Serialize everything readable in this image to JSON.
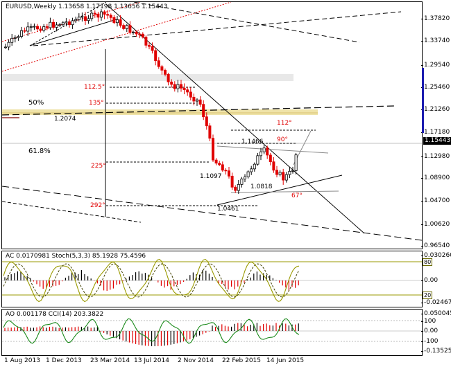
{
  "main": {
    "title": "EURUSD,Weekly  1.13658 1.17198 1.13656 1.15443",
    "current_price": "1.15443",
    "price_labels": [
      "1.37820",
      "1.33740",
      "1.29540",
      "1.25460",
      "1.21260",
      "1.17180",
      "1.12980",
      "1.08900",
      "1.04700",
      "1.00620",
      "0.96540"
    ],
    "annotations": {
      "fib50": "50%",
      "fib618": "61.8%",
      "level_1_2074": "1.2074",
      "level_1_1466": "1.1466",
      "level_1_1097": "1.1097",
      "level_1_0818": "1.0818",
      "level_1_0461": "1.0461",
      "angle_112_5": "112.5°",
      "angle_135": "135°",
      "angle_112": "112°",
      "angle_90": "90°",
      "angle_225": "225°",
      "angle_292": "292°",
      "angle_67": "67°"
    }
  },
  "ac_pane": {
    "title": "AC 0.0170981  Stoch(5,3,3) 85.1928 75.4596",
    "labels": [
      "0.030260",
      "0.00",
      "-0.024678"
    ],
    "level_high": "80",
    "level_low": "20"
  },
  "ao_pane": {
    "title": "AO 0.001178  CCI(14) 203.3822",
    "labels": [
      "0.050045",
      "100",
      "0.00",
      "-100",
      "-0.135252"
    ]
  },
  "x_axis": [
    "1 Aug 2013",
    "1 Dec 2013",
    "23 Mar 2014",
    "13 Jul 2014",
    "2 Nov 2014",
    "22 Feb 2015",
    "14 Jun 2015"
  ],
  "colors": {
    "bull": "#000000",
    "bear": "#e00000",
    "fib_band": "#efe3a8",
    "stoch": "#9a9a00",
    "axis_marker": "#1c1cb0"
  }
}
